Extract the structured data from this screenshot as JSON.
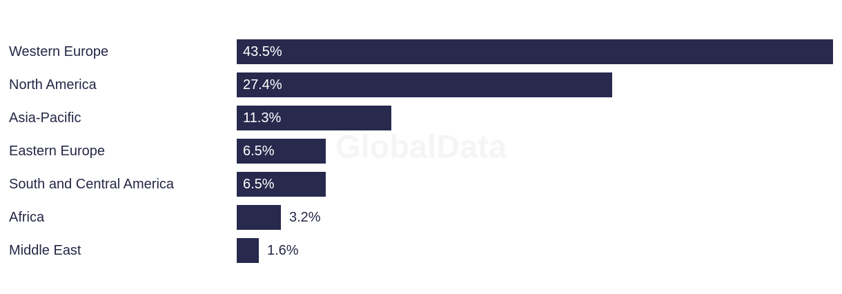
{
  "chart_data": {
    "type": "bar",
    "orientation": "horizontal",
    "title": "",
    "xlabel": "",
    "ylabel": "",
    "grid": false,
    "legend": false,
    "xlim": [
      0,
      43.5
    ],
    "categories": [
      "Western Europe",
      "North America",
      "Asia-Pacific",
      "Eastern Europe",
      "South and Central America",
      "Africa",
      "Middle East"
    ],
    "values": [
      43.5,
      27.4,
      11.3,
      6.5,
      6.5,
      3.2,
      1.6
    ],
    "value_labels": [
      "43.5%",
      "27.4%",
      "11.3%",
      "6.5%",
      "6.5%",
      "3.2%",
      "1.6%"
    ]
  },
  "watermark": {
    "text": "GlobalData"
  },
  "colors": {
    "bar": "#272a4d",
    "category_label": "#242745",
    "value_inside": "#ffffff",
    "value_outside": "#242745",
    "watermark": "#f5f5f5",
    "background": "#ffffff"
  }
}
